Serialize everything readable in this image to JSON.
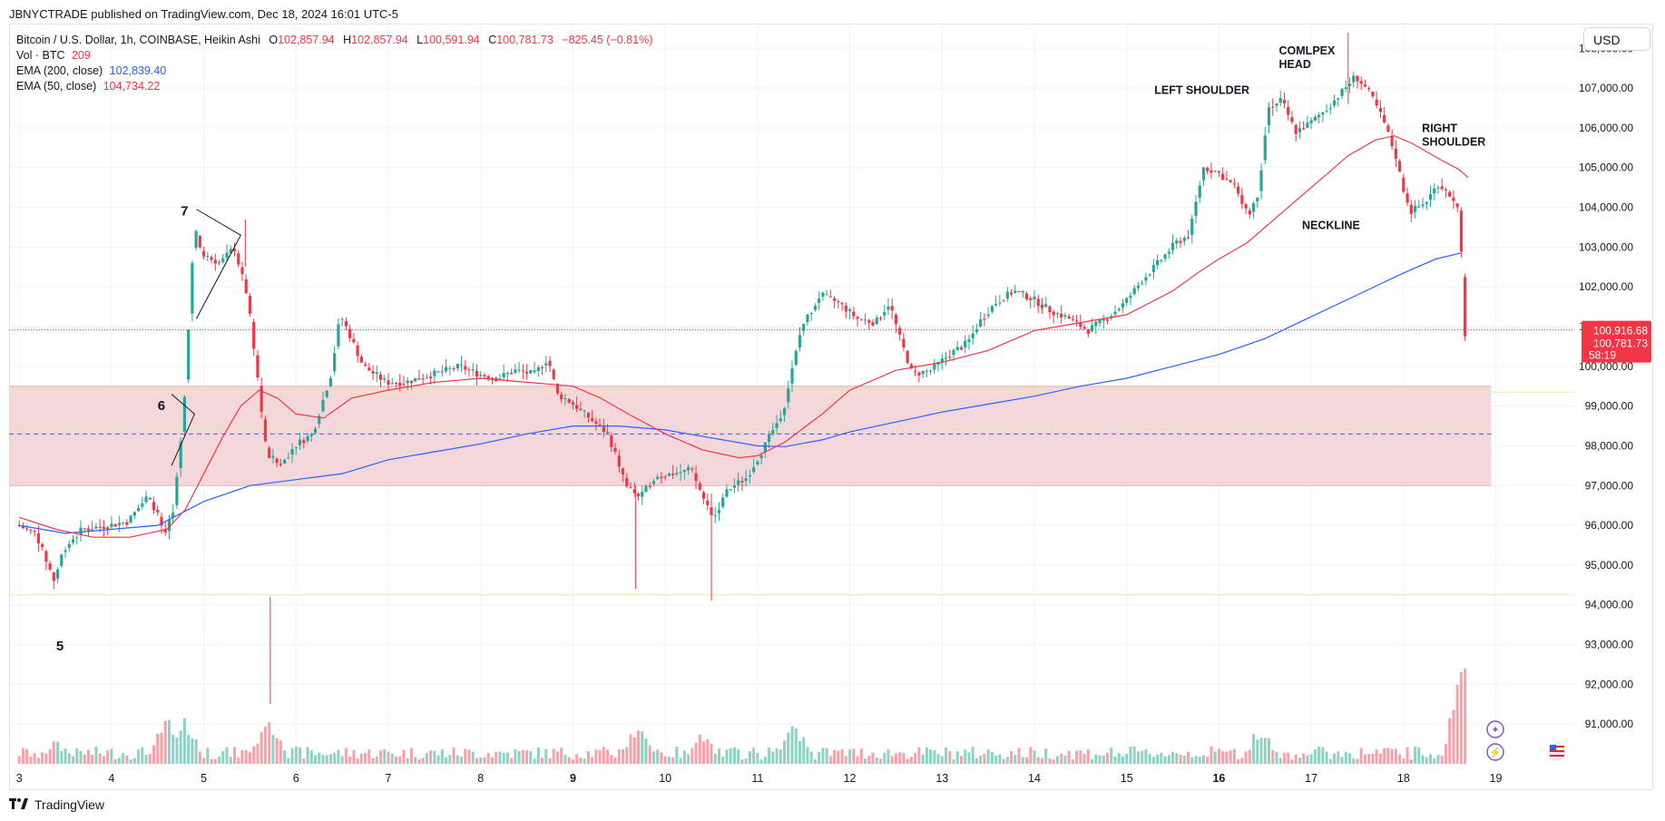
{
  "publisher_line": "JBNYCTRADE published on TradingView.com, Dec 18, 2024 16:01 UTC-5",
  "legend": {
    "symbol": "Bitcoin / U.S. Dollar, 1h, COINBASE, Heikin Ashi",
    "o_label": "O",
    "o_value": "102,857.94",
    "h_label": "H",
    "h_value": "102,857.94",
    "l_label": "L",
    "l_value": "100,591.94",
    "c_label": "C",
    "c_value": "100,781.73",
    "change": "−825.45 (−0.81%)",
    "vol_label": "Vol · BTC",
    "vol_value": "209",
    "ema200_label": "EMA (200, close)",
    "ema200_value": "102,839.40",
    "ema50_label": "EMA (50, close)",
    "ema50_value": "104,734.22"
  },
  "currency": "USD",
  "footer": {
    "brand": "TradingView",
    "logo_icon": "tradingview-logo-icon"
  },
  "colors": {
    "up": "#26a69a",
    "down": "#f23645",
    "ema200": "#2962ff",
    "ema50": "#f23645",
    "zone": "#f2d0d3",
    "vol_up": "#8fd1c5",
    "vol_down": "#f7a1a8"
  },
  "price_tags": {
    "last_price": "100,916.68",
    "close": "100,781.73",
    "countdown": "58:19"
  },
  "chart_data": {
    "type": "candlestick",
    "title": "",
    "interval": "1h",
    "style": "Heikin Ashi",
    "x_tick_labels": [
      "3",
      "4",
      "5",
      "6",
      "7",
      "8",
      "9",
      "10",
      "11",
      "12",
      "13",
      "14",
      "15",
      "16",
      "17",
      "18",
      "19"
    ],
    "bold_x_ticks": [
      "9",
      "16"
    ],
    "y_tick_labels": [
      "108,000.00",
      "107,000.00",
      "106,000.00",
      "105,000.00",
      "104,000.00",
      "103,000.00",
      "102,000.00",
      "101,000.00",
      "100,000.00",
      "99,000.00",
      "98,000.00",
      "97,000.00",
      "96,000.00",
      "95,000.00",
      "94,000.00",
      "93,000.00",
      "92,000.00",
      "91,000.00"
    ],
    "ylim": [
      90000,
      108600
    ],
    "xlim": [
      2.89,
      19.85
    ],
    "grid": true,
    "price_path": [
      [
        3.0,
        96000
      ],
      [
        3.2,
        95800
      ],
      [
        3.4,
        94600
      ],
      [
        3.5,
        95400
      ],
      [
        3.7,
        95900
      ],
      [
        4.0,
        96000
      ],
      [
        4.2,
        96100
      ],
      [
        4.4,
        96700
      ],
      [
        4.5,
        96400
      ],
      [
        4.6,
        95700
      ],
      [
        4.7,
        96500
      ],
      [
        4.8,
        98800
      ],
      [
        4.92,
        103500
      ],
      [
        5.0,
        102800
      ],
      [
        5.2,
        102600
      ],
      [
        5.35,
        103000
      ],
      [
        5.5,
        101700
      ],
      [
        5.6,
        99800
      ],
      [
        5.7,
        97800
      ],
      [
        5.85,
        97500
      ],
      [
        6.0,
        98000
      ],
      [
        6.2,
        98300
      ],
      [
        6.4,
        99800
      ],
      [
        6.5,
        101300
      ],
      [
        6.6,
        100800
      ],
      [
        6.75,
        100000
      ],
      [
        7.0,
        99600
      ],
      [
        7.2,
        99600
      ],
      [
        7.5,
        99800
      ],
      [
        7.8,
        100000
      ],
      [
        8.0,
        99800
      ],
      [
        8.2,
        99700
      ],
      [
        8.4,
        99900
      ],
      [
        8.6,
        99800
      ],
      [
        8.75,
        100200
      ],
      [
        8.85,
        99300
      ],
      [
        9.0,
        99100
      ],
      [
        9.2,
        98700
      ],
      [
        9.4,
        98300
      ],
      [
        9.6,
        97000
      ],
      [
        9.75,
        96700
      ],
      [
        9.9,
        97200
      ],
      [
        10.1,
        97300
      ],
      [
        10.3,
        97400
      ],
      [
        10.45,
        96600
      ],
      [
        10.55,
        96200
      ],
      [
        10.7,
        96900
      ],
      [
        10.9,
        97200
      ],
      [
        11.1,
        98000
      ],
      [
        11.3,
        98900
      ],
      [
        11.5,
        101000
      ],
      [
        11.7,
        101800
      ],
      [
        11.9,
        101600
      ],
      [
        12.1,
        101200
      ],
      [
        12.3,
        101100
      ],
      [
        12.45,
        101600
      ],
      [
        12.55,
        100800
      ],
      [
        12.7,
        99800
      ],
      [
        12.9,
        99900
      ],
      [
        13.1,
        100300
      ],
      [
        13.3,
        100600
      ],
      [
        13.45,
        101200
      ],
      [
        13.6,
        101600
      ],
      [
        13.8,
        101900
      ],
      [
        14.0,
        101700
      ],
      [
        14.2,
        101400
      ],
      [
        14.4,
        101200
      ],
      [
        14.6,
        100900
      ],
      [
        14.8,
        101200
      ],
      [
        15.0,
        101600
      ],
      [
        15.2,
        102200
      ],
      [
        15.4,
        102700
      ],
      [
        15.55,
        103100
      ],
      [
        15.7,
        103300
      ],
      [
        15.85,
        105000
      ],
      [
        16.0,
        104900
      ],
      [
        16.2,
        104500
      ],
      [
        16.35,
        103800
      ],
      [
        16.45,
        104400
      ],
      [
        16.55,
        106500
      ],
      [
        16.7,
        106700
      ],
      [
        16.85,
        105900
      ],
      [
        17.0,
        106100
      ],
      [
        17.2,
        106500
      ],
      [
        17.35,
        106900
      ],
      [
        17.5,
        107300
      ],
      [
        17.65,
        106900
      ],
      [
        17.8,
        106200
      ],
      [
        17.95,
        105200
      ],
      [
        18.0,
        104600
      ],
      [
        18.1,
        103900
      ],
      [
        18.25,
        104100
      ],
      [
        18.4,
        104600
      ],
      [
        18.55,
        104200
      ],
      [
        18.63,
        103800
      ],
      [
        18.68,
        100800
      ]
    ],
    "series": [
      {
        "name": "EMA (200, close)",
        "points": [
          [
            3.0,
            96000
          ],
          [
            3.5,
            95800
          ],
          [
            4.0,
            95900
          ],
          [
            4.5,
            96000
          ],
          [
            5.0,
            96600
          ],
          [
            5.5,
            97000
          ],
          [
            6.0,
            97150
          ],
          [
            6.5,
            97300
          ],
          [
            7.0,
            97650
          ],
          [
            7.5,
            97850
          ],
          [
            8.0,
            98050
          ],
          [
            8.5,
            98300
          ],
          [
            9.0,
            98500
          ],
          [
            9.5,
            98500
          ],
          [
            10.0,
            98400
          ],
          [
            10.5,
            98200
          ],
          [
            11.0,
            98000
          ],
          [
            11.3,
            97980
          ],
          [
            11.7,
            98150
          ],
          [
            12.0,
            98350
          ],
          [
            12.5,
            98600
          ],
          [
            13.0,
            98850
          ],
          [
            13.5,
            99050
          ],
          [
            14.0,
            99250
          ],
          [
            14.5,
            99500
          ],
          [
            15.0,
            99700
          ],
          [
            15.5,
            100000
          ],
          [
            16.0,
            100300
          ],
          [
            16.5,
            100700
          ],
          [
            17.0,
            101250
          ],
          [
            17.5,
            101800
          ],
          [
            18.0,
            102350
          ],
          [
            18.35,
            102700
          ],
          [
            18.62,
            102850
          ]
        ]
      },
      {
        "name": "EMA (50, close)",
        "points": [
          [
            3.0,
            96200
          ],
          [
            3.4,
            95900
          ],
          [
            3.8,
            95700
          ],
          [
            4.2,
            95700
          ],
          [
            4.6,
            95900
          ],
          [
            4.8,
            96400
          ],
          [
            5.0,
            97300
          ],
          [
            5.2,
            98200
          ],
          [
            5.4,
            99000
          ],
          [
            5.6,
            99400
          ],
          [
            5.8,
            99200
          ],
          [
            6.0,
            98800
          ],
          [
            6.3,
            98700
          ],
          [
            6.6,
            99200
          ],
          [
            7.0,
            99400
          ],
          [
            7.5,
            99600
          ],
          [
            8.0,
            99700
          ],
          [
            8.5,
            99600
          ],
          [
            9.0,
            99500
          ],
          [
            9.3,
            99200
          ],
          [
            9.6,
            98800
          ],
          [
            10.0,
            98300
          ],
          [
            10.4,
            97900
          ],
          [
            10.8,
            97700
          ],
          [
            11.0,
            97750
          ],
          [
            11.3,
            98100
          ],
          [
            11.7,
            98800
          ],
          [
            12.0,
            99400
          ],
          [
            12.5,
            99900
          ],
          [
            13.0,
            100100
          ],
          [
            13.5,
            100400
          ],
          [
            14.0,
            100900
          ],
          [
            14.5,
            101100
          ],
          [
            15.0,
            101300
          ],
          [
            15.5,
            101900
          ],
          [
            15.8,
            102400
          ],
          [
            16.0,
            102700
          ],
          [
            16.3,
            103100
          ],
          [
            16.6,
            103700
          ],
          [
            17.0,
            104500
          ],
          [
            17.4,
            105300
          ],
          [
            17.7,
            105700
          ],
          [
            17.9,
            105800
          ],
          [
            18.1,
            105600
          ],
          [
            18.4,
            105200
          ],
          [
            18.6,
            104950
          ],
          [
            18.7,
            104750
          ]
        ]
      }
    ],
    "zones": [
      {
        "y0": 97000,
        "y1": 99500,
        "x0": 2.89,
        "x1": 18.95
      }
    ],
    "dashed_levels": [
      98300
    ],
    "support_lines": [
      99350,
      94250
    ],
    "annotations": [
      {
        "text": "LEFT SHOULDER",
        "x": 15.3,
        "y": 106850
      },
      {
        "text": "COMLPEX",
        "x": 16.65,
        "y": 107850
      },
      {
        "text": "HEAD",
        "x": 16.65,
        "y": 107500
      },
      {
        "text": "RIGHT",
        "x": 18.2,
        "y": 105900
      },
      {
        "text": "SHOULDER",
        "x": 18.2,
        "y": 105550
      },
      {
        "text": "NECKLINE",
        "x": 16.9,
        "y": 103450
      },
      {
        "text": "7",
        "x": 4.75,
        "y": 103800
      },
      {
        "text": "6",
        "x": 4.5,
        "y": 98900
      },
      {
        "text": "5",
        "x": 3.4,
        "y": 92850
      }
    ],
    "volume_spikes": [
      [
        3.4,
        18
      ],
      [
        4.6,
        36
      ],
      [
        4.8,
        33
      ],
      [
        5.7,
        40
      ],
      [
        9.7,
        30
      ],
      [
        10.4,
        26
      ],
      [
        11.4,
        32
      ],
      [
        16.45,
        30
      ],
      [
        18.64,
        78
      ]
    ]
  }
}
